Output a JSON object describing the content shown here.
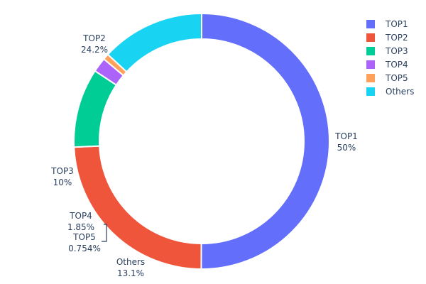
{
  "chart_data": {
    "type": "pie",
    "hole": true,
    "direction": "clockwise",
    "legend_position": "top-right",
    "slices": [
      {
        "label": "TOP1",
        "value": 50,
        "text": "50%",
        "color": "#636efa"
      },
      {
        "label": "TOP2",
        "value": 24.2,
        "text": "24.2%",
        "color": "#ef553b"
      },
      {
        "label": "TOP3",
        "value": 10,
        "text": "10%",
        "color": "#00cc96"
      },
      {
        "label": "TOP4",
        "value": 1.85,
        "text": "1.85%",
        "color": "#ab63fa"
      },
      {
        "label": "TOP5",
        "value": 0.754,
        "text": "0.754%",
        "color": "#ffa15a"
      },
      {
        "label": "Others",
        "value": 13.1,
        "text": "13.1%",
        "color": "#19d3f3"
      }
    ]
  }
}
